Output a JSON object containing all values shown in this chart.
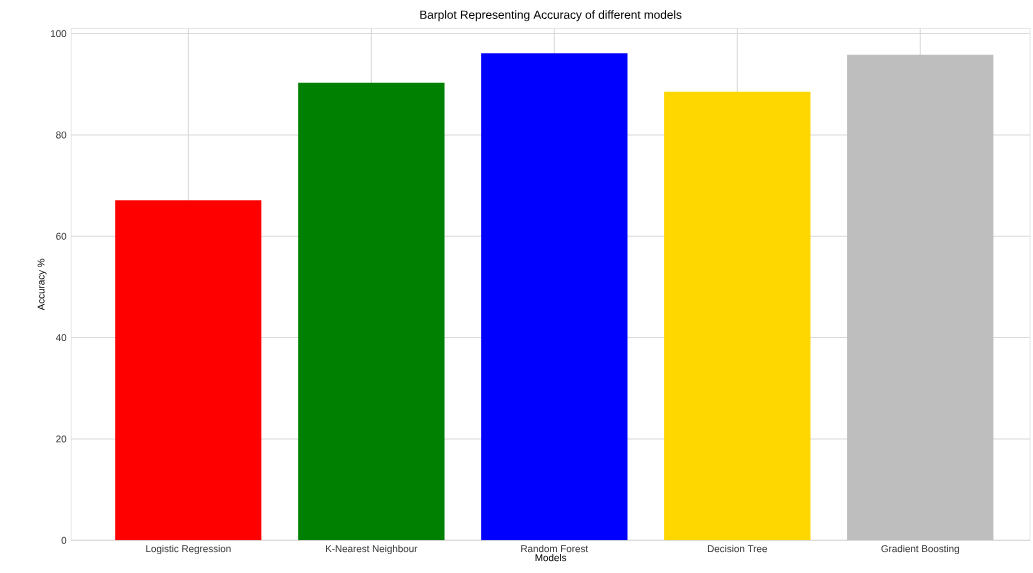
{
  "chart_data": {
    "type": "bar",
    "title": "Barplot Representing Accuracy of different models",
    "xlabel": "Models",
    "ylabel": "Accuracy %",
    "categories": [
      "Logistic Regression",
      "K-Nearest Neighbour",
      "Random Forest",
      "Decision Tree",
      "Gradient Boosting"
    ],
    "values": [
      67.1,
      90.3,
      96.1,
      88.5,
      95.8
    ],
    "colors": [
      "#ff0000",
      "#008000",
      "#0000ff",
      "#ffd700",
      "#bebebe"
    ],
    "ylim": [
      0,
      101
    ],
    "yticks": [
      0,
      20,
      40,
      60,
      80,
      100
    ],
    "grid": true
  }
}
